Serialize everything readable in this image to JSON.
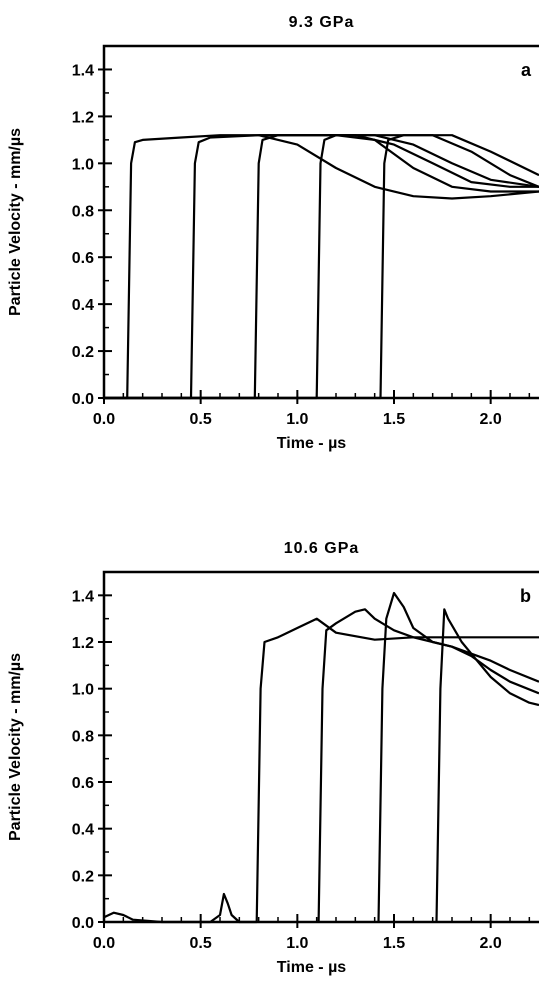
{
  "chart_data": [
    {
      "type": "line",
      "panel_letter": "a",
      "title": "9.3 GPa",
      "xlabel": "Time - µs",
      "ylabel": "Particle Velocity - mm/µs",
      "xlim": [
        0.0,
        2.25
      ],
      "ylim": [
        0.0,
        1.5
      ],
      "xticks": [
        "0.0",
        "0.5",
        "1.0",
        "1.5",
        "2.0"
      ],
      "yticks": [
        "0.0",
        "0.2",
        "0.4",
        "0.6",
        "0.8",
        "1.0",
        "1.2",
        "1.4"
      ],
      "grid": false,
      "series": [
        {
          "x": [
            0.0,
            0.12,
            0.14,
            0.16,
            0.2,
            0.4,
            0.6,
            0.8,
            1.0,
            1.2,
            1.4,
            1.6,
            1.8,
            2.0,
            2.25
          ],
          "y": [
            0.0,
            0.0,
            1.0,
            1.09,
            1.1,
            1.11,
            1.12,
            1.12,
            1.12,
            1.12,
            1.12,
            1.12,
            1.12,
            1.05,
            0.95
          ]
        },
        {
          "x": [
            0.0,
            0.45,
            0.47,
            0.49,
            0.55,
            0.8,
            1.0,
            1.2,
            1.4,
            1.6,
            1.8,
            2.0,
            2.25
          ],
          "y": [
            0.0,
            0.0,
            1.0,
            1.09,
            1.11,
            1.12,
            1.12,
            1.12,
            1.12,
            1.08,
            1.0,
            0.93,
            0.9
          ]
        },
        {
          "x": [
            0.0,
            0.78,
            0.8,
            0.82,
            0.9,
            1.1,
            1.3,
            1.5,
            1.7,
            1.9,
            2.1,
            2.25
          ],
          "y": [
            0.0,
            0.0,
            1.0,
            1.1,
            1.12,
            1.12,
            1.12,
            1.08,
            1.0,
            0.92,
            0.9,
            0.9
          ]
        },
        {
          "x": [
            0.0,
            1.1,
            1.12,
            1.14,
            1.2,
            1.4,
            1.6,
            1.8,
            2.0,
            2.25
          ],
          "y": [
            0.0,
            0.0,
            1.0,
            1.1,
            1.12,
            1.1,
            0.98,
            0.9,
            0.88,
            0.88
          ]
        },
        {
          "x": [
            0.0,
            1.43,
            1.45,
            1.47,
            1.55,
            1.7,
            1.9,
            2.1,
            2.25
          ],
          "y": [
            0.0,
            0.0,
            1.0,
            1.1,
            1.12,
            1.12,
            1.05,
            0.95,
            0.9
          ]
        },
        {
          "x": [
            0.8,
            1.0,
            1.2,
            1.4,
            1.6,
            1.8,
            2.0,
            2.25
          ],
          "y": [
            1.12,
            1.08,
            0.98,
            0.9,
            0.86,
            0.85,
            0.86,
            0.88
          ]
        }
      ]
    },
    {
      "type": "line",
      "panel_letter": "b",
      "title": "10.6 GPa",
      "xlabel": "Time - µs",
      "ylabel": "Particle Velocity - mm/µs",
      "xlim": [
        0.0,
        2.25
      ],
      "ylim": [
        0.0,
        1.5
      ],
      "xticks": [
        "0.0",
        "0.5",
        "1.0",
        "1.5",
        "2.0"
      ],
      "yticks": [
        "0.0",
        "0.2",
        "0.4",
        "0.6",
        "0.8",
        "1.0",
        "1.2",
        "1.4"
      ],
      "grid": false,
      "series": [
        {
          "x": [
            0.0,
            0.05,
            0.1,
            0.15,
            0.3,
            0.55,
            0.6,
            0.62,
            0.64,
            0.66,
            0.7,
            0.79,
            0.81,
            0.83,
            0.9,
            1.0,
            1.1,
            1.2,
            1.4,
            1.6,
            1.8,
            2.0,
            2.25
          ],
          "y": [
            0.02,
            0.04,
            0.03,
            0.01,
            0.0,
            0.0,
            0.03,
            0.12,
            0.08,
            0.03,
            0.0,
            0.0,
            1.0,
            1.2,
            1.22,
            1.26,
            1.3,
            1.24,
            1.21,
            1.22,
            1.22,
            1.22,
            1.22
          ]
        },
        {
          "x": [
            1.11,
            1.13,
            1.15,
            1.2,
            1.3,
            1.35,
            1.4,
            1.5,
            1.6,
            1.7,
            1.8,
            1.9,
            2.0,
            2.1,
            2.25
          ],
          "y": [
            0.0,
            1.0,
            1.25,
            1.28,
            1.33,
            1.34,
            1.3,
            1.25,
            1.22,
            1.2,
            1.18,
            1.15,
            1.12,
            1.08,
            1.03
          ]
        },
        {
          "x": [
            1.42,
            1.44,
            1.46,
            1.5,
            1.55,
            1.6,
            1.7,
            1.8,
            1.9,
            2.0,
            2.1,
            2.25
          ],
          "y": [
            0.0,
            1.0,
            1.3,
            1.41,
            1.35,
            1.26,
            1.2,
            1.18,
            1.14,
            1.08,
            1.03,
            0.98
          ]
        },
        {
          "x": [
            1.72,
            1.74,
            1.76,
            1.78,
            1.85,
            1.9,
            2.0,
            2.1,
            2.2,
            2.25
          ],
          "y": [
            0.0,
            1.0,
            1.34,
            1.3,
            1.2,
            1.15,
            1.05,
            0.98,
            0.94,
            0.93
          ]
        }
      ]
    }
  ]
}
